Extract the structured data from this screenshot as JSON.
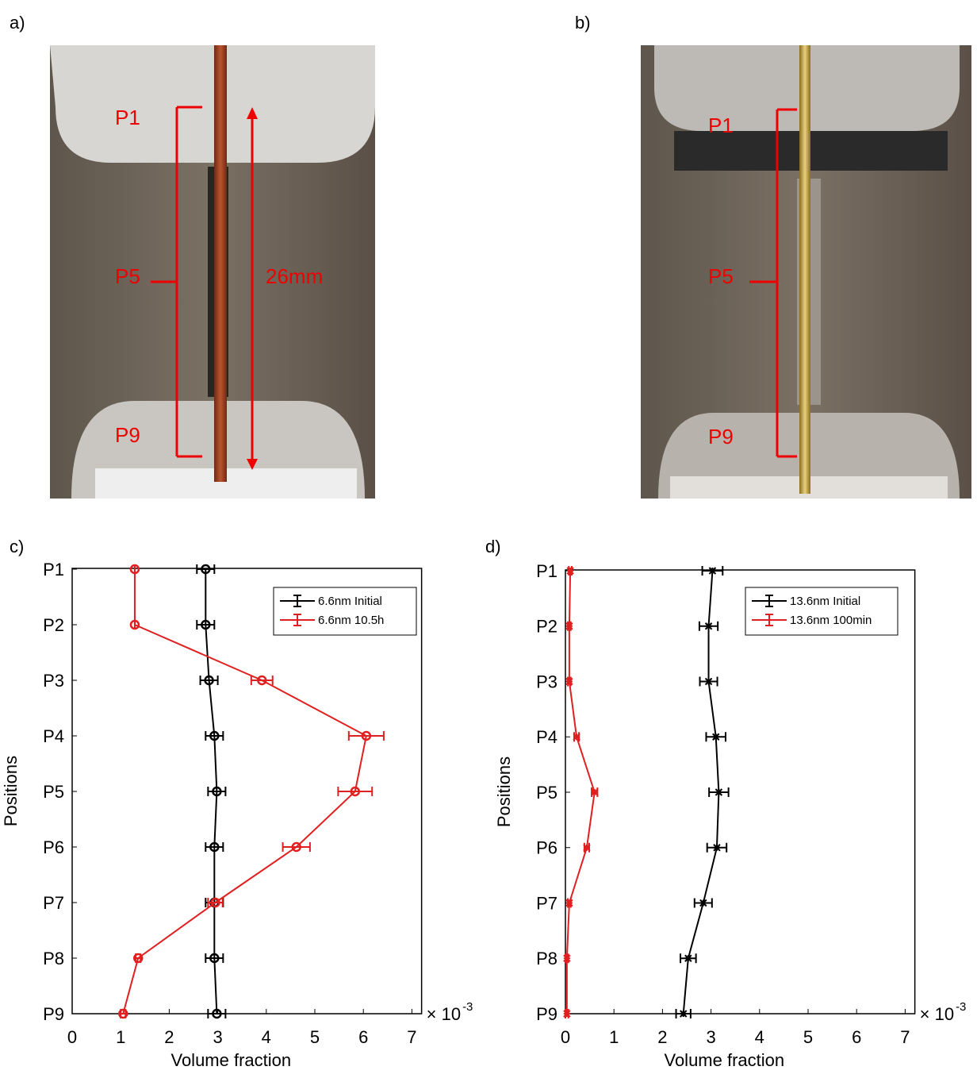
{
  "photos": [
    {
      "label": "a)",
      "annotations": [
        "P1",
        "P5",
        "P9",
        "26mm"
      ]
    },
    {
      "label": "b)",
      "annotations": [
        "P1",
        "P5",
        "P9"
      ]
    }
  ],
  "chart_data": [
    {
      "type": "errorbar",
      "panel_label": "c)",
      "x_label": "Volume fraction",
      "y_label": "Positions",
      "x_scale_label": "× 10",
      "x_scale_exponent": "-3",
      "categories": [
        "P1",
        "P2",
        "P3",
        "P4",
        "P5",
        "P6",
        "P7",
        "P8",
        "P9"
      ],
      "xlim": [
        0,
        7.2
      ],
      "xticks": [
        0,
        1,
        2,
        3,
        4,
        5,
        6,
        7
      ],
      "legend": "upper right",
      "series": [
        {
          "name": "6.6nm Initial",
          "color": "#000000",
          "marker": "o",
          "values": [
            2.75,
            2.75,
            2.82,
            2.93,
            2.98,
            2.93,
            2.93,
            2.93,
            2.98
          ],
          "errors": [
            0.18,
            0.18,
            0.18,
            0.18,
            0.18,
            0.18,
            0.18,
            0.18,
            0.18
          ]
        },
        {
          "name": "6.6nm 10.5h",
          "color": "#e02020",
          "marker": "o",
          "values": [
            1.29,
            1.29,
            3.91,
            6.06,
            5.83,
            4.62,
            2.95,
            1.36,
            1.05
          ],
          "errors": [
            0,
            0,
            0.22,
            0.36,
            0.35,
            0.28,
            0.15,
            0.05,
            0.05
          ]
        }
      ]
    },
    {
      "type": "errorbar",
      "panel_label": "d)",
      "x_label": "Volume fraction",
      "y_label": "Positions",
      "x_scale_label": "× 10",
      "x_scale_exponent": "-3",
      "categories": [
        "P1",
        "P2",
        "P3",
        "P4",
        "P5",
        "P6",
        "P7",
        "P8",
        "P9"
      ],
      "xlim": [
        0,
        7.2
      ],
      "xticks": [
        0,
        1,
        2,
        3,
        4,
        5,
        6,
        7
      ],
      "legend": "upper right",
      "series": [
        {
          "name": "13.6nm Initial",
          "color": "#000000",
          "marker": "*",
          "values": [
            3.03,
            2.95,
            2.95,
            3.1,
            3.16,
            3.12,
            2.84,
            2.53,
            2.43
          ],
          "errors": [
            0.21,
            0.19,
            0.18,
            0.2,
            0.2,
            0.2,
            0.18,
            0.16,
            0.15
          ]
        },
        {
          "name": "13.6nm 100min",
          "color": "#e02020",
          "marker": "*",
          "values": [
            0.1,
            0.08,
            0.08,
            0.23,
            0.6,
            0.44,
            0.08,
            0.03,
            0.03
          ],
          "errors": [
            0.03,
            0.03,
            0.03,
            0.05,
            0.06,
            0.05,
            0.03,
            0.03,
            0.03
          ]
        }
      ]
    }
  ]
}
